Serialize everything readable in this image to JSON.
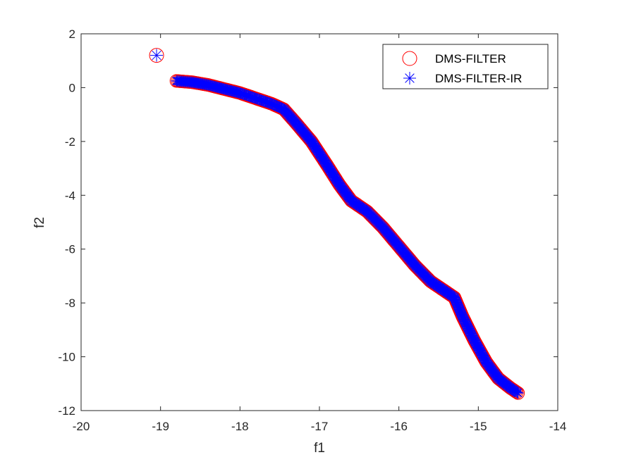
{
  "chart_data": {
    "type": "scatter",
    "xlabel": "f1",
    "ylabel": "f2",
    "xlim": [
      -20,
      -14
    ],
    "ylim": [
      -12,
      2
    ],
    "xticks": [
      -20,
      -19,
      -18,
      -17,
      -16,
      -15,
      -14
    ],
    "yticks": [
      -12,
      -10,
      -8,
      -6,
      -4,
      -2,
      0,
      2
    ],
    "grid": false,
    "legend_location": "top-right",
    "series": [
      {
        "name": "DMS-FILTER",
        "marker": "circle",
        "color": "#ff0000",
        "isolated_points": [
          [
            -19.05,
            1.2
          ]
        ],
        "curve": [
          [
            -18.8,
            0.25
          ],
          [
            -18.6,
            0.2
          ],
          [
            -18.4,
            0.1
          ],
          [
            -18.2,
            -0.05
          ],
          [
            -18.0,
            -0.2
          ],
          [
            -17.8,
            -0.4
          ],
          [
            -17.6,
            -0.6
          ],
          [
            -17.45,
            -0.8
          ],
          [
            -17.3,
            -1.3
          ],
          [
            -17.1,
            -2.0
          ],
          [
            -16.9,
            -2.9
          ],
          [
            -16.75,
            -3.6
          ],
          [
            -16.6,
            -4.2
          ],
          [
            -16.4,
            -4.6
          ],
          [
            -16.2,
            -5.2
          ],
          [
            -16.0,
            -5.9
          ],
          [
            -15.8,
            -6.6
          ],
          [
            -15.6,
            -7.2
          ],
          [
            -15.4,
            -7.6
          ],
          [
            -15.3,
            -7.8
          ],
          [
            -15.2,
            -8.5
          ],
          [
            -15.05,
            -9.4
          ],
          [
            -14.9,
            -10.2
          ],
          [
            -14.75,
            -10.8
          ],
          [
            -14.6,
            -11.15
          ],
          [
            -14.5,
            -11.35
          ]
        ]
      },
      {
        "name": "DMS-FILTER-IR",
        "marker": "asterisk",
        "color": "#0000ff",
        "isolated_points": [
          [
            -19.05,
            1.2
          ]
        ],
        "curve": [
          [
            -18.8,
            0.25
          ],
          [
            -18.6,
            0.2
          ],
          [
            -18.4,
            0.1
          ],
          [
            -18.2,
            -0.05
          ],
          [
            -18.0,
            -0.2
          ],
          [
            -17.8,
            -0.4
          ],
          [
            -17.6,
            -0.6
          ],
          [
            -17.45,
            -0.8
          ],
          [
            -17.3,
            -1.3
          ],
          [
            -17.1,
            -2.0
          ],
          [
            -16.9,
            -2.9
          ],
          [
            -16.75,
            -3.6
          ],
          [
            -16.6,
            -4.2
          ],
          [
            -16.4,
            -4.6
          ],
          [
            -16.2,
            -5.2
          ],
          [
            -16.0,
            -5.9
          ],
          [
            -15.8,
            -6.6
          ],
          [
            -15.6,
            -7.2
          ],
          [
            -15.4,
            -7.6
          ],
          [
            -15.3,
            -7.8
          ],
          [
            -15.2,
            -8.5
          ],
          [
            -15.05,
            -9.4
          ],
          [
            -14.9,
            -10.2
          ],
          [
            -14.75,
            -10.8
          ],
          [
            -14.6,
            -11.15
          ],
          [
            -14.5,
            -11.35
          ]
        ]
      }
    ]
  }
}
